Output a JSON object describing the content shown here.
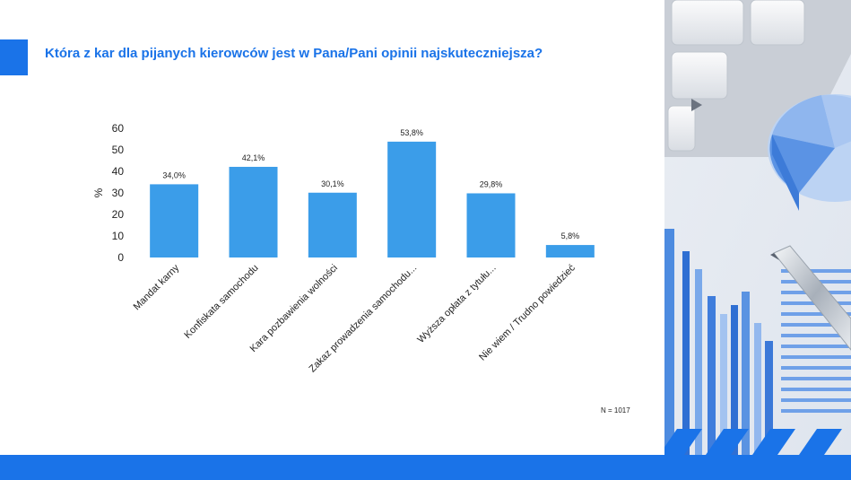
{
  "title": "Która z kar dla pijanych kierowców jest w Pana/Pani opinii najskuteczniejsza?",
  "sample_note": "N = 1017",
  "colors": {
    "accent": "#1a73e8",
    "bar": "#3b9de9",
    "text": "#222222"
  },
  "chart_data": {
    "type": "bar",
    "title": "",
    "xlabel": "",
    "ylabel": "%",
    "ylim": [
      0,
      60
    ],
    "yticks": [
      0,
      10,
      20,
      30,
      40,
      50,
      60
    ],
    "grid": false,
    "categories": [
      "Mandat karny",
      "Konfiskata samochodu",
      "Kara pozbawienia wolności",
      "Zakaz prowadzenia samochodu...",
      "Wyższa opłata z tytułu...",
      "Nie wiem / Trudno powiedzieć"
    ],
    "values": [
      34.0,
      42.1,
      30.1,
      53.8,
      29.8,
      5.8
    ],
    "data_labels": [
      "34,0%",
      "42,1%",
      "30,1%",
      "53,8%",
      "29,8%",
      "5,8%"
    ]
  }
}
